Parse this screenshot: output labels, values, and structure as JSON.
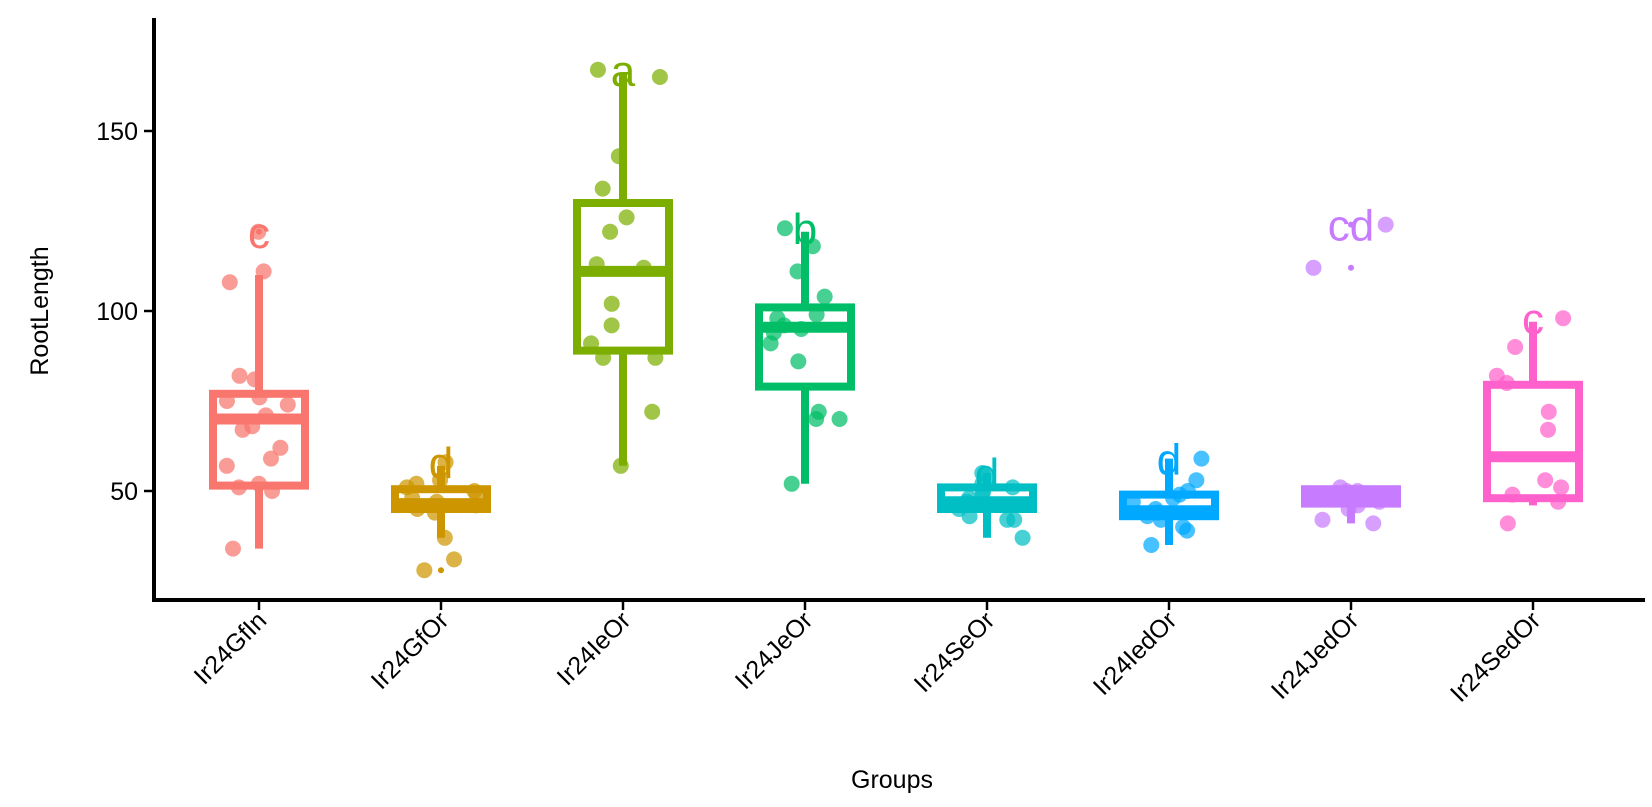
{
  "chart_data": {
    "type": "boxplot",
    "title": "",
    "xlabel": "Groups",
    "ylabel": "RootLength",
    "ylim": [
      20,
      182
    ],
    "yticks": [
      50,
      100,
      150
    ],
    "grid": false,
    "legend": "none",
    "groups": [
      {
        "name": "Ir24GfIn",
        "color": "#F8766D",
        "letter": "c",
        "box": {
          "whisker_low": 34,
          "q1": 51.5,
          "median": 70,
          "q3": 77,
          "whisker_high": 110
        },
        "outliers": [
          122
        ],
        "points": [
          122,
          111,
          108,
          82,
          81,
          76,
          75,
          74,
          71,
          68,
          67,
          62,
          59,
          57,
          52,
          51,
          50,
          34
        ]
      },
      {
        "name": "Ir24GfOr",
        "color": "#CD9600",
        "letter": "d",
        "box": {
          "whisker_low": 37,
          "q1": 45,
          "median": 46.5,
          "q3": 50.5,
          "whisker_high": 57
        },
        "outliers": [
          28
        ],
        "points": [
          58,
          53,
          52,
          51,
          50,
          49,
          48,
          47,
          46,
          45,
          44,
          37,
          31,
          28
        ]
      },
      {
        "name": "Ir24IeOr",
        "color": "#7CAE00",
        "letter": "a",
        "box": {
          "whisker_low": 57,
          "q1": 89,
          "median": 111,
          "q3": 130,
          "whisker_high": 166
        },
        "outliers": [],
        "points": [
          167,
          165,
          143,
          134,
          126,
          122,
          113,
          112,
          102,
          96,
          91,
          87,
          87,
          72,
          57
        ]
      },
      {
        "name": "Ir24JeOr",
        "color": "#00BE67",
        "letter": "b",
        "box": {
          "whisker_low": 52,
          "q1": 79,
          "median": 95.5,
          "q3": 101,
          "whisker_high": 122
        },
        "outliers": [],
        "points": [
          123,
          118,
          111,
          104,
          99,
          98,
          96,
          95,
          94,
          91,
          86,
          72,
          70,
          70,
          52
        ]
      },
      {
        "name": "Ir24SeOr",
        "color": "#00BFC4",
        "letter": "d",
        "box": {
          "whisker_low": 37,
          "q1": 45,
          "median": 47,
          "q3": 51,
          "whisker_high": 55
        },
        "outliers": [],
        "points": [
          55,
          54,
          52,
          51,
          50,
          49,
          48,
          47,
          46,
          45,
          43,
          42,
          42,
          37
        ]
      },
      {
        "name": "Ir24IedOr",
        "color": "#00A9FF",
        "letter": "d",
        "box": {
          "whisker_low": 35,
          "q1": 43,
          "median": 44.5,
          "q3": 49,
          "whisker_high": 59
        },
        "outliers": [],
        "points": [
          59,
          53,
          50,
          49,
          48,
          47,
          45,
          44,
          43,
          42,
          40,
          39,
          35
        ]
      },
      {
        "name": "Ir24JedOr",
        "color": "#C77CFF",
        "letter": "cd",
        "box": {
          "whisker_low": 41,
          "q1": 46.5,
          "median": 48,
          "q3": 50.5,
          "whisker_high": 51
        },
        "outliers": [
          124,
          112
        ],
        "points": [
          124,
          112,
          51,
          50,
          50,
          49,
          48,
          48,
          47,
          46,
          45,
          42,
          41
        ]
      },
      {
        "name": "Ir24SedOr",
        "color": "#FF61CC",
        "letter": "c",
        "box": {
          "whisker_low": 46,
          "q1": 48,
          "median": 59.5,
          "q3": 79.5,
          "whisker_high": 97
        },
        "outliers": [],
        "points": [
          98,
          90,
          82,
          80,
          72,
          67,
          53,
          51,
          49,
          47,
          41
        ]
      }
    ]
  }
}
